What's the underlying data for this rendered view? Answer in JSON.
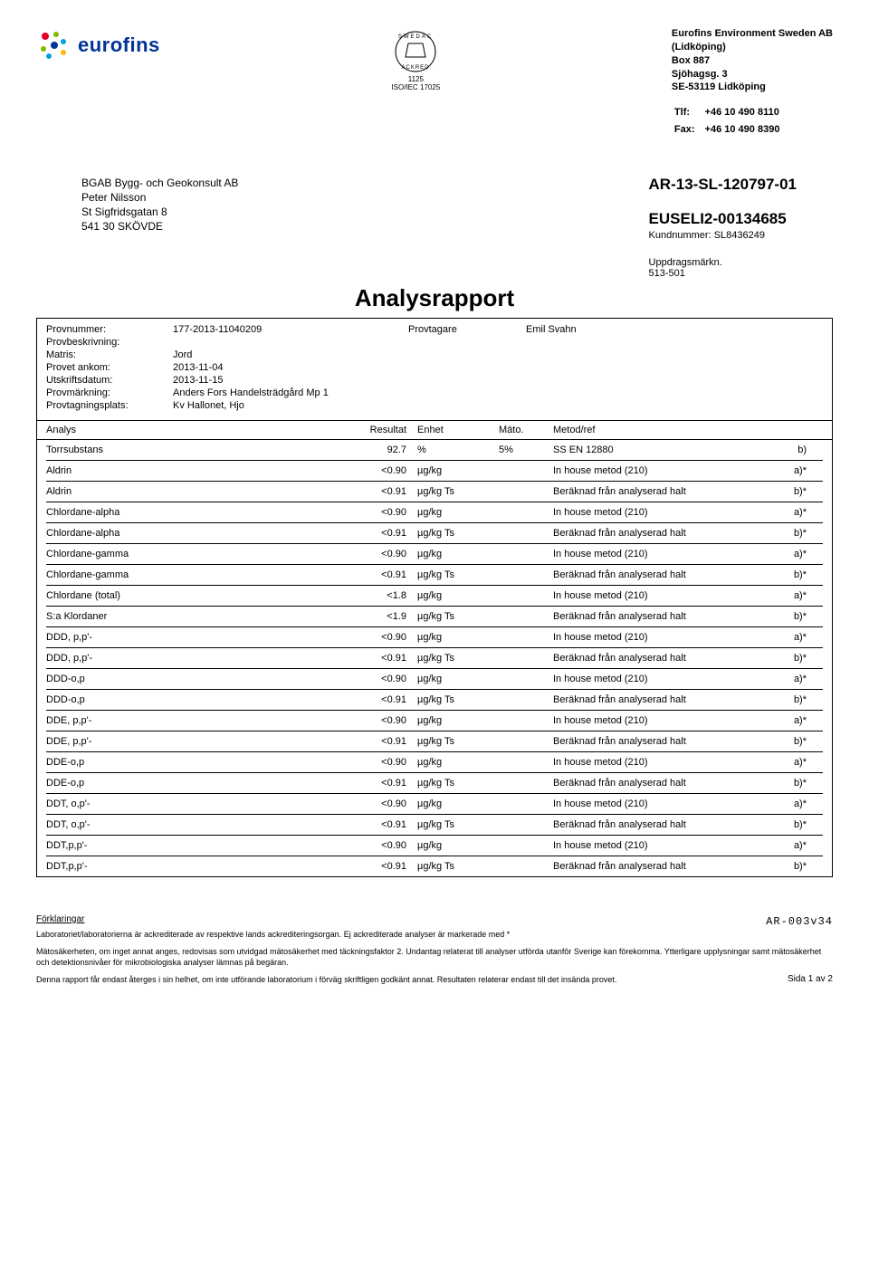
{
  "header": {
    "logo_text": "eurofins",
    "cert_num": "1125",
    "cert_std": "ISO/IEC 17025",
    "company": [
      "Eurofins Environment Sweden AB",
      "(Lidköping)",
      "Box 887",
      "Sjöhagsg. 3",
      "SE-53119 Lidköping"
    ],
    "tlf_label": "Tlf:",
    "tlf_val": "+46 10 490 8110",
    "fax_label": "Fax:",
    "fax_val": "+46 10 490 8390"
  },
  "recipient": {
    "lines": [
      "BGAB Bygg- och Geokonsult AB",
      "Peter Nilsson",
      "St Sigfridsgatan 8",
      "541 30 SKÖVDE"
    ]
  },
  "refs": {
    "ar": "AR-13-SL-120797-01",
    "euseli": "EUSELI2-00134685",
    "kund_label": "Kundnummer:",
    "kund_val": "SL8436249",
    "mark_label": "Uppdragsmärkn.",
    "mark_val": "513-501"
  },
  "title": "Analysrapport",
  "meta": {
    "provnummer_label": "Provnummer:",
    "provnummer": "177-2013-11040209",
    "provtagare_label": "Provtagare",
    "provtagare": "Emil Svahn",
    "provbeskrivning_label": "Provbeskrivning:",
    "matris_label": "Matris:",
    "matris": "Jord",
    "ankom_label": "Provet ankom:",
    "ankom": "2013-11-04",
    "utskrift_label": "Utskriftsdatum:",
    "utskrift": "2013-11-15",
    "markning_label": "Provmärkning:",
    "markning": "Anders Fors Handelsträdgård Mp 1",
    "plats_label": "Provtagningsplats:",
    "plats": "Kv Hallonet, Hjo"
  },
  "columns": {
    "analys": "Analys",
    "resultat": "Resultat",
    "enhet": "Enhet",
    "mato": "Mäto.",
    "metod": "Metod/ref"
  },
  "rows": [
    {
      "a": "Torrsubstans",
      "r": "92.7",
      "u": "%",
      "m": "5%",
      "met": "SS EN 12880",
      "n": "b)"
    },
    {
      "a": "Aldrin",
      "r": "<0.90",
      "u": "µg/kg",
      "m": "",
      "met": "In house metod (210)",
      "n": "a)*"
    },
    {
      "a": "Aldrin",
      "r": "<0.91",
      "u": "µg/kg Ts",
      "m": "",
      "met": "Beräknad från analyserad halt",
      "n": "b)*"
    },
    {
      "a": "Chlordane-alpha",
      "r": "<0.90",
      "u": "µg/kg",
      "m": "",
      "met": "In house metod (210)",
      "n": "a)*"
    },
    {
      "a": "Chlordane-alpha",
      "r": "<0.91",
      "u": "µg/kg Ts",
      "m": "",
      "met": "Beräknad från analyserad halt",
      "n": "b)*"
    },
    {
      "a": "Chlordane-gamma",
      "r": "<0.90",
      "u": "µg/kg",
      "m": "",
      "met": "In house metod (210)",
      "n": "a)*"
    },
    {
      "a": "Chlordane-gamma",
      "r": "<0.91",
      "u": "µg/kg Ts",
      "m": "",
      "met": "Beräknad från analyserad halt",
      "n": "b)*"
    },
    {
      "a": "Chlordane (total)",
      "r": "<1.8",
      "u": "µg/kg",
      "m": "",
      "met": "In house metod (210)",
      "n": "a)*"
    },
    {
      "a": "S:a Klordaner",
      "r": "<1.9",
      "u": "µg/kg Ts",
      "m": "",
      "met": "Beräknad från analyserad halt",
      "n": "b)*"
    },
    {
      "a": "DDD, p,p'-",
      "r": "<0.90",
      "u": "µg/kg",
      "m": "",
      "met": "In house metod (210)",
      "n": "a)*"
    },
    {
      "a": "DDD, p,p'-",
      "r": "<0.91",
      "u": "µg/kg Ts",
      "m": "",
      "met": "Beräknad från analyserad halt",
      "n": "b)*"
    },
    {
      "a": "DDD-o,p",
      "r": "<0.90",
      "u": "µg/kg",
      "m": "",
      "met": "In house metod (210)",
      "n": "a)*"
    },
    {
      "a": "DDD-o,p",
      "r": "<0.91",
      "u": "µg/kg Ts",
      "m": "",
      "met": "Beräknad från analyserad halt",
      "n": "b)*"
    },
    {
      "a": "DDE, p,p'-",
      "r": "<0.90",
      "u": "µg/kg",
      "m": "",
      "met": "In house metod (210)",
      "n": "a)*"
    },
    {
      "a": "DDE, p,p'-",
      "r": "<0.91",
      "u": "µg/kg Ts",
      "m": "",
      "met": "Beräknad från analyserad halt",
      "n": "b)*"
    },
    {
      "a": "DDE-o,p",
      "r": "<0.90",
      "u": "µg/kg",
      "m": "",
      "met": "In house metod (210)",
      "n": "a)*"
    },
    {
      "a": "DDE-o,p",
      "r": "<0.91",
      "u": "µg/kg Ts",
      "m": "",
      "met": "Beräknad från analyserad halt",
      "n": "b)*"
    },
    {
      "a": "DDT, o,p'-",
      "r": "<0.90",
      "u": "µg/kg",
      "m": "",
      "met": "In house metod (210)",
      "n": "a)*"
    },
    {
      "a": "DDT, o,p'-",
      "r": "<0.91",
      "u": "µg/kg Ts",
      "m": "",
      "met": "Beräknad från analyserad halt",
      "n": "b)*"
    },
    {
      "a": "DDT,p,p'-",
      "r": "<0.90",
      "u": "µg/kg",
      "m": "",
      "met": "In house metod (210)",
      "n": "a)*"
    },
    {
      "a": "DDT,p,p'-",
      "r": "<0.91",
      "u": "µg/kg Ts",
      "m": "",
      "met": "Beräknad från analyserad halt",
      "n": "b)*"
    }
  ],
  "footer": {
    "heading": "Förklaringar",
    "code": "AR-003v34",
    "p1": "Laboratoriet/laboratorierna är ackrediterade av respektive lands ackrediteringsorgan. Ej ackrediterade analyser är markerade med *",
    "p2": "Mätosäkerheten, om inget annat anges, redovisas som utvidgad mätosäkerhet med täckningsfaktor 2. Undantag relaterat till analyser utförda utanför Sverige kan förekomma. Ytterligare upplysningar samt mätosäkerhet och detektionsnivåer för mikrobiologiska analyser lämnas på begäran.",
    "p3": "Denna rapport får endast återges i sin helhet, om inte utförande laboratorium i förväg skriftligen godkänt annat. Resultaten relaterar endast till det insända provet.",
    "pageno": "Sida 1 av 2"
  }
}
